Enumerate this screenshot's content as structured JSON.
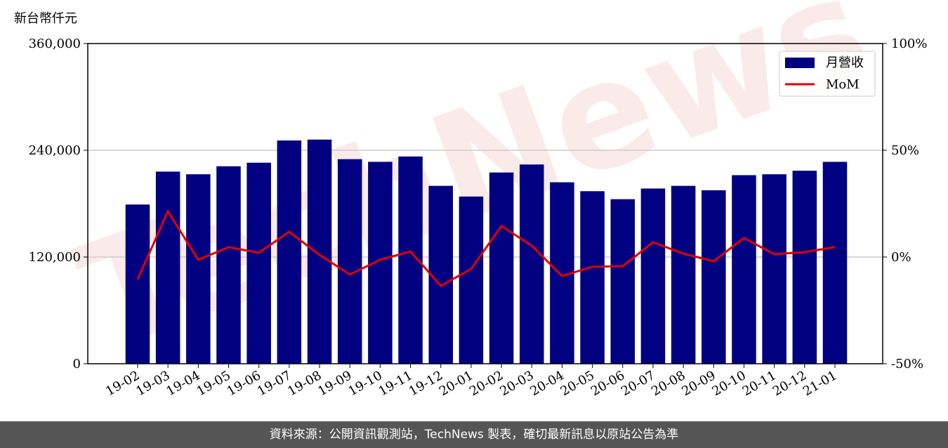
{
  "chart_data": {
    "type": "bar",
    "unit_label": "新台幣仟元",
    "watermark": "TechNews",
    "categories": [
      "19-02",
      "19-03",
      "19-04",
      "19-05",
      "19-06",
      "19-07",
      "19-08",
      "19-09",
      "19-10",
      "19-11",
      "19-12",
      "20-01",
      "20-02",
      "20-03",
      "20-04",
      "20-05",
      "20-06",
      "20-07",
      "20-08",
      "20-09",
      "20-10",
      "20-11",
      "20-12",
      "21-01"
    ],
    "series": [
      {
        "name": "月營收",
        "type": "bar",
        "color": "#000080",
        "axis": "y",
        "values": [
          179000,
          216000,
          213000,
          222000,
          226000,
          251000,
          252000,
          230000,
          227000,
          233000,
          200000,
          188000,
          215000,
          224000,
          204000,
          194000,
          185000,
          197000,
          200000,
          195000,
          212000,
          213000,
          217000,
          227000
        ]
      },
      {
        "name": "MoM",
        "type": "line",
        "color": "#e00000",
        "axis": "y2",
        "values": [
          -10.5,
          21.4,
          -1.3,
          4.6,
          2.0,
          11.8,
          1.0,
          -8.2,
          -1.3,
          2.6,
          -13.5,
          -5.6,
          14.5,
          5.3,
          -8.9,
          -4.6,
          -4.3,
          6.9,
          1.6,
          -2.0,
          8.9,
          1.3,
          2.3,
          4.6
        ]
      }
    ],
    "ylim": [
      0,
      360000
    ],
    "yticks": [
      {
        "value": 0,
        "label": "0"
      },
      {
        "value": 120000,
        "label": "120,000"
      },
      {
        "value": 240000,
        "label": "240,000"
      },
      {
        "value": 360000,
        "label": "360,000"
      }
    ],
    "y2lim": [
      -50,
      100
    ],
    "y2ticks": [
      {
        "value": -50,
        "label": "-50%"
      },
      {
        "value": 0,
        "label": "0%"
      },
      {
        "value": 50,
        "label": "50%"
      },
      {
        "value": 100,
        "label": "100%"
      }
    ],
    "grid": true,
    "legend": "upper right"
  },
  "footer": "資料來源：公開資訊觀測站，TechNews 製表，確切最新訊息以原站公告為準"
}
